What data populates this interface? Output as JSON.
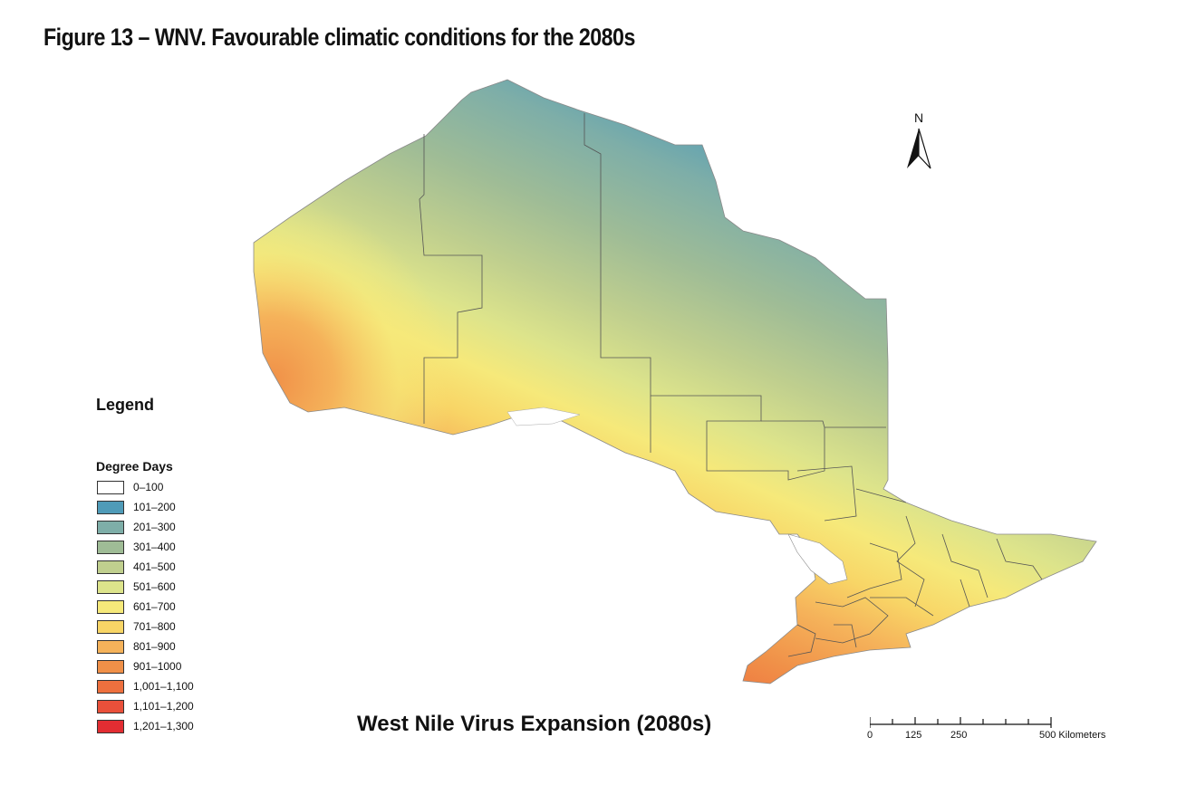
{
  "figure_title": "Figure 13 – WNV. Favourable climatic conditions for the 2080s",
  "map_title": "West Nile Virus Expansion (2080s)",
  "legend": {
    "title": "Legend",
    "subtitle": "Degree Days",
    "items": [
      {
        "label": "0–100",
        "color": "#ffffff"
      },
      {
        "label": "101–200",
        "color": "#4f9bb8"
      },
      {
        "label": "201–300",
        "color": "#7eaea8"
      },
      {
        "label": "301–400",
        "color": "#9fbc96"
      },
      {
        "label": "401–500",
        "color": "#c0cf8e"
      },
      {
        "label": "501–600",
        "color": "#dde48b"
      },
      {
        "label": "601–700",
        "color": "#f6e97a"
      },
      {
        "label": "701–800",
        "color": "#f8d566"
      },
      {
        "label": "801–900",
        "color": "#f5b25a"
      },
      {
        "label": "901–1000",
        "color": "#f09048"
      },
      {
        "label": "1,001–1,100",
        "color": "#ee703e"
      },
      {
        "label": "1,101–1,200",
        "color": "#e9503a"
      },
      {
        "label": "1,201–1,300",
        "color": "#e22d32"
      }
    ]
  },
  "north_arrow": {
    "label": "N"
  },
  "scale_bar": {
    "labels": [
      "0",
      "125",
      "250",
      "500 Kilometers"
    ]
  }
}
